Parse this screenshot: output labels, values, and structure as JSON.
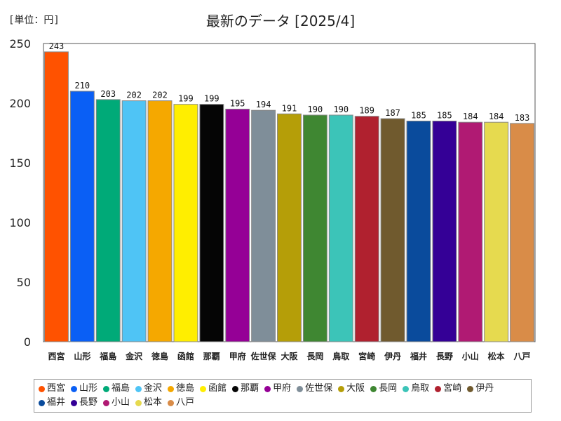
{
  "unit_label": "[単位：円]",
  "chart_data": {
    "type": "bar",
    "title": "最新のデータ [2025/4]",
    "xlabel": "",
    "ylabel": "円",
    "ylim": [
      0,
      250
    ],
    "yticks": [
      0,
      50,
      100,
      150,
      200,
      250
    ],
    "grid": false,
    "legend_position": "bottom",
    "categories": [
      "西宮",
      "山形",
      "福島",
      "金沢",
      "徳島",
      "函館",
      "那覇",
      "甲府",
      "佐世保",
      "大阪",
      "長岡",
      "鳥取",
      "宮崎",
      "伊丹",
      "福井",
      "長野",
      "小山",
      "松本",
      "八戸"
    ],
    "values": [
      243,
      210,
      203,
      202,
      202,
      199,
      199,
      195,
      194,
      191,
      190,
      190,
      189,
      187,
      185,
      185,
      184,
      184,
      183
    ],
    "colors": [
      "#ff5200",
      "#0a5ff5",
      "#00aa78",
      "#4fc4f5",
      "#f5a800",
      "#ffee00",
      "#050505",
      "#950096",
      "#7f8e99",
      "#b59e08",
      "#3f8732",
      "#3cc4b8",
      "#b0212f",
      "#705a2e",
      "#0a4b9c",
      "#340096",
      "#b01a73",
      "#e6da4f",
      "#d98c48"
    ]
  }
}
